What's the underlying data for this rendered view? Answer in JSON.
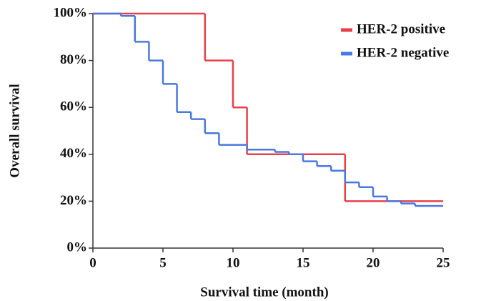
{
  "chart_data": {
    "type": "step",
    "xlabel": "Survival time (month)",
    "ylabel": "Overall survival",
    "xlim": [
      0,
      25
    ],
    "xticks": [
      0,
      5,
      10,
      15,
      20,
      25
    ],
    "ylim": [
      0,
      100
    ],
    "yticks": [
      {
        "value": 0,
        "label": "0%"
      },
      {
        "value": 20,
        "label": "20%"
      },
      {
        "value": 40,
        "label": "40%"
      },
      {
        "value": 60,
        "label": "60%"
      },
      {
        "value": 80,
        "label": "80%"
      },
      {
        "value": 100,
        "label": "100%"
      }
    ],
    "legend": "top-right",
    "series": [
      {
        "name": "HER-2 positive",
        "color": "#e8404a",
        "x": [
          0,
          8,
          10,
          11,
          18,
          25
        ],
        "values": [
          100,
          80,
          60,
          40,
          20,
          20
        ]
      },
      {
        "name": "HER-2 negative",
        "color": "#4a78e0",
        "x": [
          0,
          2,
          3,
          4,
          5,
          6,
          7,
          8,
          9,
          11,
          13,
          14,
          15,
          16,
          17,
          18,
          19,
          20,
          21,
          22,
          23,
          25
        ],
        "values": [
          100,
          99,
          88,
          80,
          70,
          58,
          55,
          49,
          44,
          42,
          41,
          40,
          37,
          35,
          33,
          28,
          26,
          22,
          20,
          19,
          18,
          18
        ]
      }
    ]
  }
}
